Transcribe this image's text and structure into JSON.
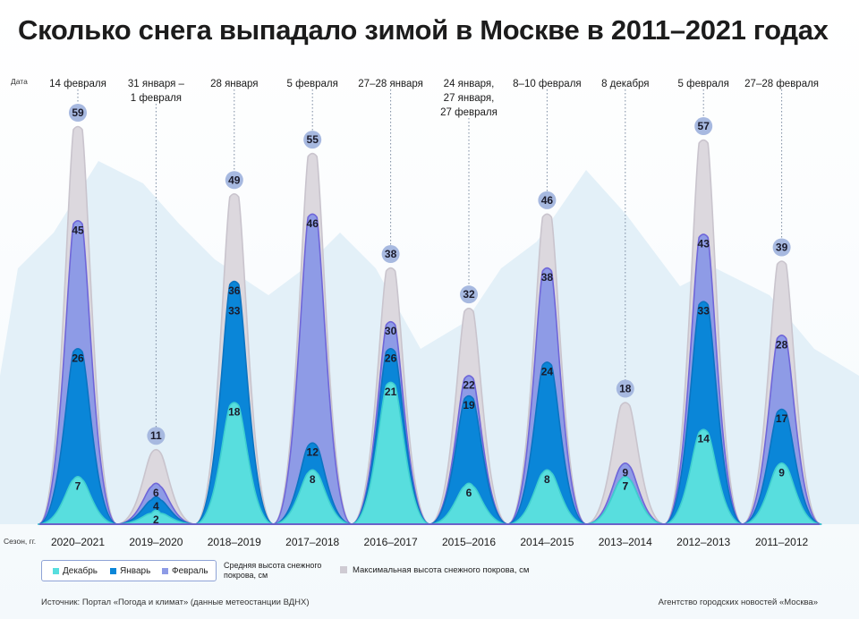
{
  "title": "Сколько снега выпадало зимой в Москве в 2011–2021 годах",
  "colors": {
    "december": "#58dede",
    "january": "#0a86d8",
    "february": "#8e9be6",
    "max": "#dcd8de",
    "background_mountains": "#e3f0f8"
  },
  "chart_data": {
    "type": "area",
    "title": "Сколько снега выпадало зимой в Москве в 2011–2021 годах",
    "xlabel": "Сезон, гг.",
    "date_row_label": "Дата",
    "ylabel": "",
    "ylim": [
      0,
      60
    ],
    "unit": "см",
    "categories": [
      "2020–2021",
      "2019–2020",
      "2018–2019",
      "2017–2018",
      "2016–2017",
      "2015–2016",
      "2014–2015",
      "2013–2014",
      "2012–2013",
      "2011–2012"
    ],
    "dates": [
      [
        "14 февраля"
      ],
      [
        "31 января –",
        "1 февраля"
      ],
      [
        "28 января"
      ],
      [
        "5 февраля"
      ],
      [
        "27–28 января"
      ],
      [
        "24 января,",
        "27 января,",
        "27 февраля"
      ],
      [
        "8–10 февраля"
      ],
      [
        "8 декабря"
      ],
      [
        "5 февраля"
      ],
      [
        "27–28 февраля"
      ]
    ],
    "series": [
      {
        "name": "Декабрь",
        "values": [
          7,
          2,
          18,
          8,
          21,
          6,
          8,
          7,
          14,
          9
        ]
      },
      {
        "name": "Январь",
        "values": [
          26,
          4,
          36,
          12,
          26,
          19,
          24,
          7,
          33,
          17
        ]
      },
      {
        "name": "Февраль",
        "values": [
          45,
          6,
          33,
          46,
          30,
          22,
          38,
          9,
          43,
          28
        ]
      },
      {
        "name": "Максимальная высота снежного покрова, см",
        "values": [
          59,
          11,
          49,
          55,
          38,
          32,
          46,
          18,
          57,
          39
        ]
      }
    ],
    "legend": {
      "items": [
        "Декабрь",
        "Январь",
        "Февраль"
      ],
      "avg_caption": "Средняя высота снежного покрова, см",
      "max_caption": "Максимальная высота снежного покрова, см"
    }
  },
  "footer": {
    "source": "Источник: Портал «Погода и климат» (данные метеостанции ВДНХ)",
    "agency": "Агентство городских новостей «Москва»"
  }
}
